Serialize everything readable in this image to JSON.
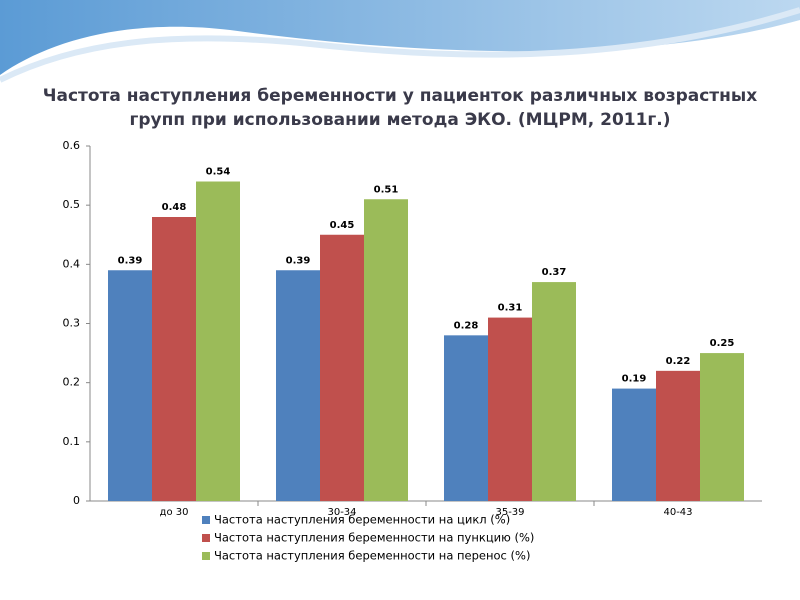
{
  "chart_data": {
    "type": "bar",
    "title": "Частота наступления беременности у пациенток различных возрастных групп при использовании метода ЭКО. (МЦРМ, 2011г.)",
    "categories": [
      "до 30",
      "30-34",
      "35-39",
      "40-43"
    ],
    "series": [
      {
        "name": "Частота наступления беременности на цикл (%)",
        "color": "#4f81bd",
        "values": [
          0.39,
          0.39,
          0.28,
          0.19
        ]
      },
      {
        "name": "Частота наступления беременности на пункцию (%)",
        "color": "#c0504d",
        "values": [
          0.48,
          0.45,
          0.31,
          0.22
        ]
      },
      {
        "name": "Частота наступления беременности на перенос (%)",
        "color": "#9bbb59",
        "values": [
          0.54,
          0.51,
          0.37,
          0.25
        ]
      }
    ],
    "ylim": [
      0,
      0.6
    ],
    "yticks": [
      0,
      0.1,
      0.2,
      0.3,
      0.4,
      0.5,
      0.6
    ],
    "grid": false,
    "legend": "bottom"
  }
}
